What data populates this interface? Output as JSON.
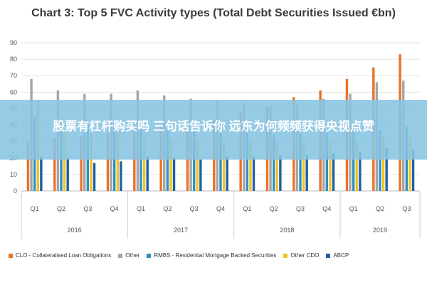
{
  "chart_data": {
    "type": "bar",
    "title": "Chart 3: Top 5 FVC Activity types (Total Debt Securities Issued €bn)",
    "xlabel": "",
    "ylabel": "",
    "ylim": [
      0,
      90
    ],
    "yticks": [
      0,
      10,
      20,
      30,
      40,
      50,
      60,
      70,
      80,
      90
    ],
    "grid": true,
    "legend_position": "bottom",
    "categories": [
      "Q1",
      "Q2",
      "Q3",
      "Q4",
      "Q1",
      "Q2",
      "Q3",
      "Q4",
      "Q1",
      "Q2",
      "Q3",
      "Q4",
      "Q1",
      "Q2",
      "Q3"
    ],
    "years": [
      "2016",
      "2017",
      "2018",
      "2019"
    ],
    "year_groups": [
      4,
      4,
      4,
      3
    ],
    "series": [
      {
        "name": "CLO - Collateralised Loan Obligations",
        "color": "#e8732c",
        "values": [
          30,
          32,
          33,
          35,
          38,
          39,
          41,
          43,
          48,
          51,
          57,
          61,
          68,
          75,
          83
        ]
      },
      {
        "name": "Other",
        "color": "#a5a5a5",
        "values": [
          68,
          61,
          59,
          59,
          61,
          58,
          56,
          55,
          53,
          52,
          53,
          56,
          59,
          66,
          67
        ]
      },
      {
        "name": "RMBS - Residential Mortgage Backed Securities",
        "color": "#2f8fc6",
        "values": [
          45,
          44,
          40,
          38,
          38,
          37,
          36,
          35,
          35,
          34,
          35,
          35,
          36,
          37,
          39
        ]
      },
      {
        "name": "Other CDO",
        "color": "#efc51f",
        "values": [
          55,
          35,
          35,
          35,
          33,
          32,
          31,
          30,
          30,
          30,
          30,
          30,
          30,
          33,
          34
        ]
      },
      {
        "name": "ABCP",
        "color": "#1f5fa8",
        "values": [
          21,
          20,
          17,
          18,
          21,
          20,
          19,
          21,
          21,
          22,
          22,
          23,
          24,
          26,
          25
        ]
      }
    ]
  },
  "overlay_text": "股票有杠杆购买吗 三句话告诉你 远东为何频频获得央视点赞"
}
